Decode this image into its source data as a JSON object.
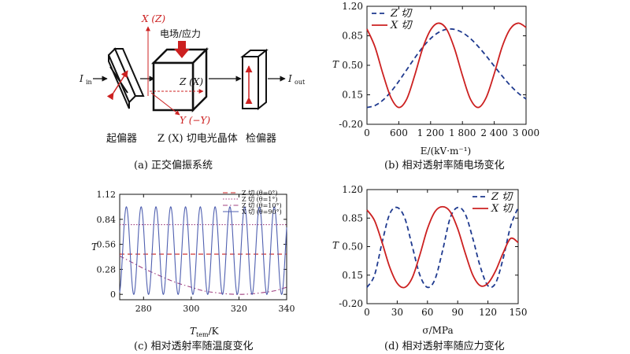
{
  "diagram": {
    "polarizer_label": "起偏器",
    "crystal_label": "Z (X) 切电光晶体",
    "analyzer_label": "检偏器",
    "input_label": "I",
    "input_sub": "in",
    "output_label": "I",
    "output_sub": "out",
    "field_label": "电场/应力",
    "axis_vertical": "X (Z)",
    "axis_horizontal": "Z (X)",
    "axis_diagonal": "Y (−Y)"
  },
  "captions": {
    "a": "(a) 正交偏振系统",
    "b": "(b) 相对透射率随电场变化",
    "c": "(c) 相对透射率随温度变化",
    "d": "(d) 相对透射率随应力变化"
  },
  "chart_data": [
    {
      "id": "b",
      "type": "line",
      "ylabel": "T",
      "xlabel": "E/(kV·m⁻¹)",
      "xlim": [
        0,
        3000
      ],
      "ylim": [
        -0.2,
        1.2
      ],
      "xticks": [
        0,
        600,
        1200,
        1800,
        2400,
        3000
      ],
      "xtick_labels": [
        "0",
        "600",
        "1 200",
        "1 800",
        "2 400",
        "3 000"
      ],
      "yticks": [
        -0.2,
        0.15,
        0.5,
        0.85,
        1.2
      ],
      "ytick_labels": [
        "-0.20",
        "0.15",
        "0.50",
        "0.85",
        "1.20"
      ],
      "legend": [
        "Z 切",
        "X 切"
      ],
      "legend_position": "top-left",
      "series": [
        {
          "name": "Z 切",
          "style": "dashed",
          "color": "#1f3a8f",
          "x": [
            0,
            150,
            300,
            450,
            600,
            750,
            900,
            1050,
            1200,
            1350,
            1500,
            1650,
            1800,
            1950,
            2100,
            2250,
            2400,
            2550,
            2700,
            2850,
            3000
          ],
          "y": [
            0.0,
            0.022,
            0.086,
            0.185,
            0.31,
            0.448,
            0.586,
            0.713,
            0.817,
            0.89,
            0.927,
            0.926,
            0.888,
            0.818,
            0.722,
            0.61,
            0.49,
            0.372,
            0.263,
            0.171,
            0.1
          ]
        },
        {
          "name": "X 切",
          "style": "solid",
          "color": "#cc2020",
          "x": [
            0,
            150,
            300,
            450,
            600,
            750,
            900,
            1050,
            1200,
            1350,
            1500,
            1650,
            1800,
            1950,
            2100,
            2250,
            2400,
            2550,
            2700,
            2850,
            3000
          ],
          "y": [
            0.93,
            0.72,
            0.4,
            0.12,
            0.0,
            0.1,
            0.38,
            0.7,
            0.92,
            1.0,
            0.93,
            0.7,
            0.38,
            0.1,
            0.0,
            0.12,
            0.4,
            0.72,
            0.93,
            1.0,
            0.95
          ]
        }
      ]
    },
    {
      "id": "c",
      "type": "line",
      "ylabel": "T",
      "xlabel": "T",
      "xlabel_sub": "tem",
      "xlabel_unit": "/K",
      "xlim": [
        270,
        340
      ],
      "ylim": [
        -0.06,
        1.12
      ],
      "xticks": [
        280,
        300,
        320,
        340
      ],
      "xtick_labels": [
        "280",
        "300",
        "320",
        "340"
      ],
      "yticks": [
        0,
        0.28,
        0.56,
        0.84,
        1.12
      ],
      "ytick_labels": [
        "0",
        "0.28",
        "0.56",
        "0.84",
        "1.12"
      ],
      "legend": [
        "Z 切 (θ=0°)",
        "Z 切 (θ=1°)",
        "Z 切 (θ=10°)",
        "X 切 (θ=90°)"
      ],
      "legend_position": "top-right",
      "series": [
        {
          "name": "Z 切 (θ=0°)",
          "style": "dashed",
          "color": "#cc2020",
          "x": [
            270,
            340
          ],
          "y": [
            0.45,
            0.45
          ]
        },
        {
          "name": "Z 切 (θ=1°)",
          "style": "dotted",
          "color": "#a04080",
          "x": [
            270,
            340
          ],
          "y": [
            0.78,
            0.78
          ]
        },
        {
          "name": "Z 切 (θ=10°)",
          "style": "dashdot",
          "color": "#a04080",
          "x": [
            270,
            275,
            280,
            285,
            290,
            295,
            300,
            305,
            310,
            315,
            320,
            325,
            330,
            335,
            340
          ],
          "y": [
            0.43,
            0.36,
            0.29,
            0.23,
            0.17,
            0.12,
            0.08,
            0.04,
            0.02,
            0.005,
            0.0,
            0.005,
            0.02,
            0.04,
            0.08
          ]
        },
        {
          "name": "X 切 (θ=90°)",
          "style": "solid",
          "color": "#5060b0",
          "period": 6.2,
          "phase_at": 272.8,
          "y_min": 0,
          "y_max": 0.98,
          "x_range": [
            270,
            340
          ]
        }
      ]
    },
    {
      "id": "d",
      "type": "line",
      "ylabel": "T",
      "xlabel": "σ/MPa",
      "xlim": [
        0,
        150
      ],
      "ylim": [
        -0.2,
        1.2
      ],
      "xticks": [
        0,
        30,
        60,
        90,
        120,
        150
      ],
      "xtick_labels": [
        "0",
        "30",
        "60",
        "90",
        "120",
        "150"
      ],
      "yticks": [
        -0.2,
        0.15,
        0.5,
        0.85,
        1.2
      ],
      "ytick_labels": [
        "-0.20",
        "0.15",
        "0.50",
        "0.85",
        "1.20"
      ],
      "legend": [
        "Z 切",
        "X 切"
      ],
      "legend_position": "top-right",
      "series": [
        {
          "name": "Z 切",
          "style": "dashed",
          "color": "#1f3a8f",
          "x": [
            0,
            7.5,
            15,
            22.5,
            30,
            37.5,
            45,
            52.5,
            60,
            67.5,
            75,
            82.5,
            90,
            97.5,
            105,
            112.5,
            120,
            127.5,
            135,
            142.5,
            150
          ],
          "y": [
            0.0,
            0.15,
            0.55,
            0.9,
            0.98,
            0.85,
            0.5,
            0.15,
            0.0,
            0.1,
            0.45,
            0.85,
            0.98,
            0.9,
            0.6,
            0.25,
            0.02,
            0.05,
            0.35,
            0.75,
            0.98
          ]
        },
        {
          "name": "X 切",
          "style": "solid",
          "color": "#cc2020",
          "x": [
            0,
            7.5,
            15,
            22.5,
            30,
            37.5,
            45,
            52.5,
            60,
            67.5,
            75,
            82.5,
            90,
            97.5,
            105,
            112.5,
            120,
            127.5,
            135,
            142.5,
            150
          ],
          "y": [
            0.95,
            0.82,
            0.55,
            0.25,
            0.05,
            0.0,
            0.12,
            0.4,
            0.72,
            0.93,
            0.99,
            0.93,
            0.72,
            0.42,
            0.15,
            0.02,
            0.05,
            0.2,
            0.42,
            0.6,
            0.55
          ]
        }
      ]
    }
  ]
}
